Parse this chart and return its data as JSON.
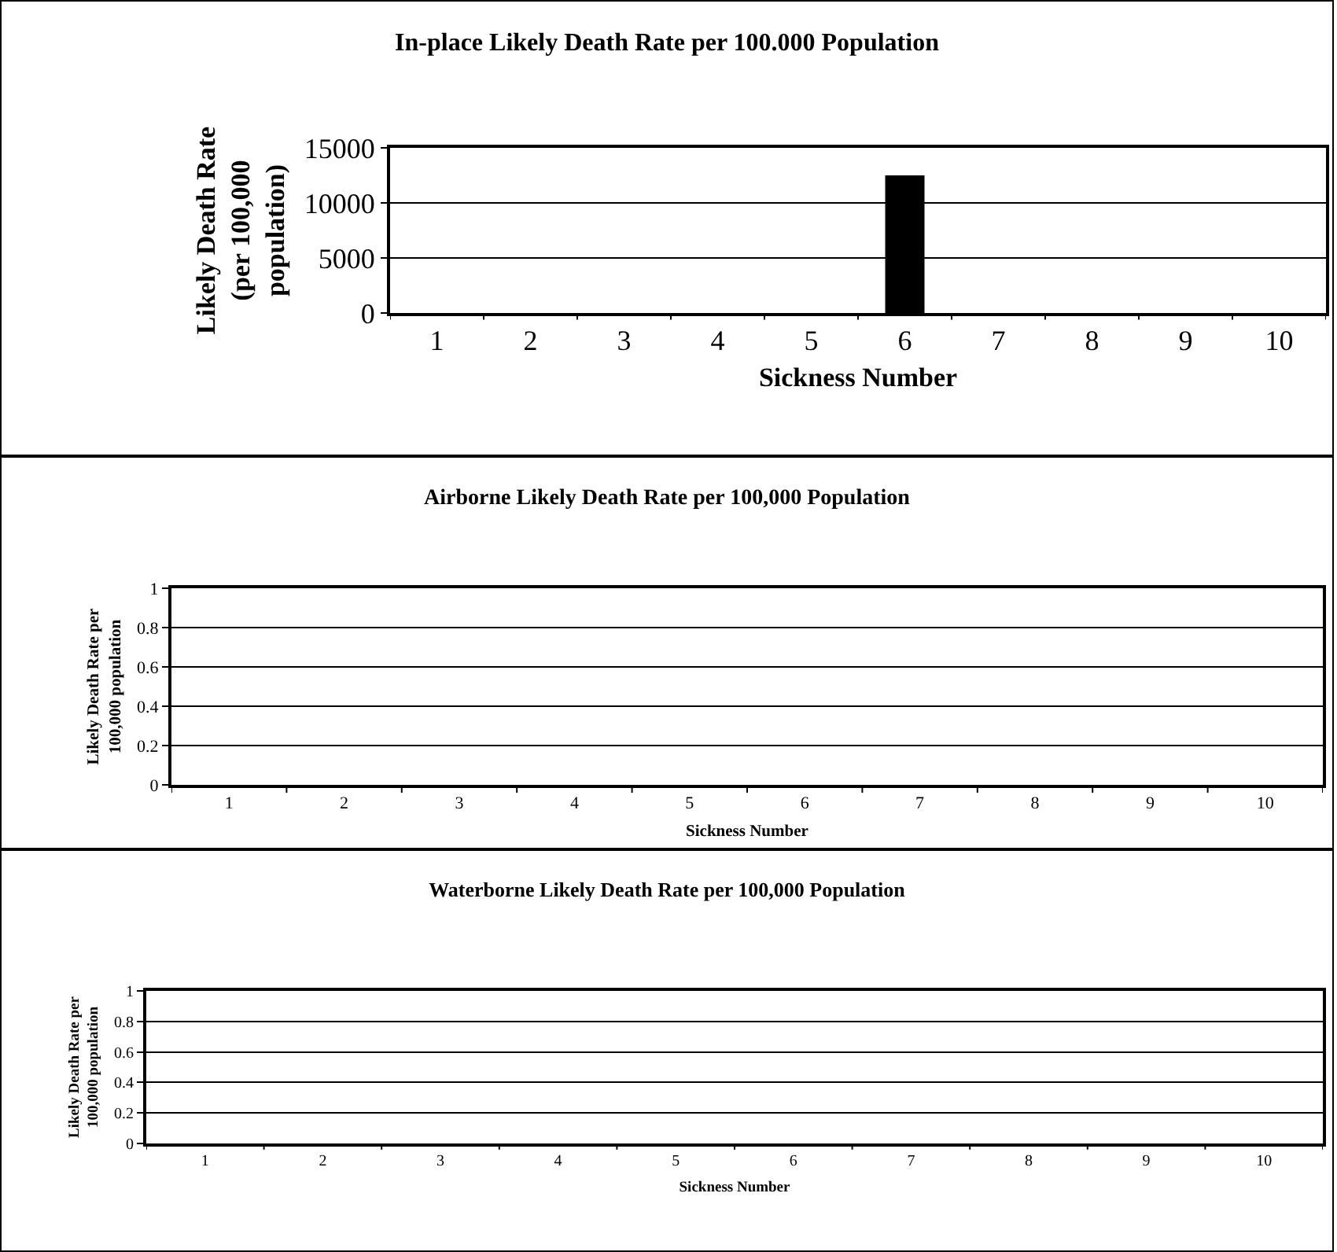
{
  "chart_data": [
    {
      "type": "bar",
      "title": "In-place Likely Death Rate per 100.000 Population",
      "xlabel": "Sickness Number",
      "ylabel": "Likely Death Rate\n(per 100,000\npopulation)",
      "categories": [
        "1",
        "2",
        "3",
        "4",
        "5",
        "6",
        "7",
        "8",
        "9",
        "10"
      ],
      "values": [
        0,
        0,
        0,
        0,
        0,
        12500,
        0,
        0,
        0,
        0
      ],
      "color": "#000000",
      "ylim": [
        0,
        15000
      ],
      "yticks": [
        0,
        5000,
        10000,
        15000
      ],
      "grid": "y"
    },
    {
      "type": "bar",
      "title": "Airborne Likely Death Rate per 100,000 Population",
      "xlabel": "Sickness Number",
      "ylabel": "Likely Death Rate per\n100,000 population",
      "categories": [
        "1",
        "2",
        "3",
        "4",
        "5",
        "6",
        "7",
        "8",
        "9",
        "10"
      ],
      "values": [
        0,
        0,
        0,
        0,
        0,
        0,
        0,
        0,
        0,
        0
      ],
      "ylim": [
        0,
        1
      ],
      "yticks": [
        0,
        0.2,
        0.4,
        0.6,
        0.8,
        1
      ],
      "grid": "y"
    },
    {
      "type": "bar",
      "title": "Waterborne Likely Death Rate per 100,000 Population",
      "xlabel": "Sickness Number",
      "ylabel": "Likely Death Rate per\n100,000 population",
      "categories": [
        "1",
        "2",
        "3",
        "4",
        "5",
        "6",
        "7",
        "8",
        "9",
        "10"
      ],
      "values": [
        0,
        0,
        0,
        0,
        0,
        0,
        0,
        0,
        0,
        0
      ],
      "ylim": [
        0,
        1
      ],
      "yticks": [
        0,
        0.2,
        0.4,
        0.6,
        0.8,
        1
      ],
      "grid": "y"
    }
  ]
}
